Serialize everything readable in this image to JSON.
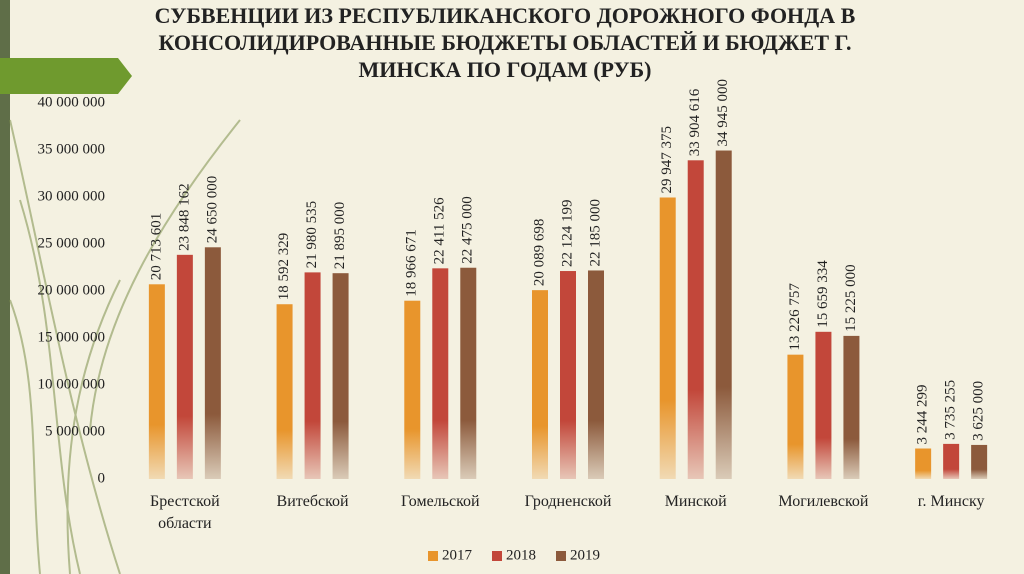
{
  "chart_data": {
    "type": "bar",
    "title": "СУБВЕНЦИИ ИЗ РЕСПУБЛИКАНСКОГО ДОРОЖНОГО ФОНДА В КОНСОЛИДИРОВАННЫЕ БЮДЖЕТЫ ОБЛАСТЕЙ И БЮДЖЕТ Г. МИНСКА ПО ГОДАМ (РУБ)",
    "categories": [
      "Брестской области",
      "Витебской",
      "Гомельской",
      "Гродненской",
      "Минской",
      "Могилевской",
      "г. Минску"
    ],
    "series": [
      {
        "name": "2017",
        "color": "#e8952c",
        "values": [
          20713601,
          18592329,
          18966671,
          20089698,
          29947375,
          13226757,
          3244299
        ],
        "value_labels": [
          "20 713 601",
          "18 592 329",
          "18 966 671",
          "20 089 698",
          "29 947 375",
          "13 226 757",
          "3 244 299"
        ]
      },
      {
        "name": "2018",
        "color": "#c2473a",
        "values": [
          23848162,
          21980535,
          22411526,
          22124199,
          33904616,
          15659334,
          3735255
        ],
        "value_labels": [
          "23 848 162",
          "21 980 535",
          "22 411 526",
          "22 124 199",
          "33 904 616",
          "15 659 334",
          "3 735 255"
        ]
      },
      {
        "name": "2019",
        "color": "#8c5a3c",
        "values": [
          24650000,
          21895000,
          22475000,
          22185000,
          34945000,
          15225000,
          3625000
        ],
        "value_labels": [
          "24 650 000",
          "21 895 000",
          "22 475 000",
          "22 185 000",
          "34 945 000",
          "15 225 000",
          "3 625 000"
        ]
      }
    ],
    "ylim": [
      0,
      40000000
    ],
    "yticks": [
      0,
      {
        "value": 5000000,
        "label": "5 000 000"
      },
      {
        "value": 10000000,
        "label": "10 000 000"
      },
      {
        "value": 15000000,
        "label": "15 000 000"
      },
      {
        "value": 20000000,
        "label": "20 000 000"
      },
      {
        "value": 25000000,
        "label": "25 000 000"
      },
      {
        "value": 30000000,
        "label": "30 000 000"
      },
      {
        "value": 35000000,
        "label": "35 000 000"
      },
      {
        "value": 40000000,
        "label": "40 000 000"
      }
    ],
    "grid": false,
    "legend": "bottom"
  }
}
